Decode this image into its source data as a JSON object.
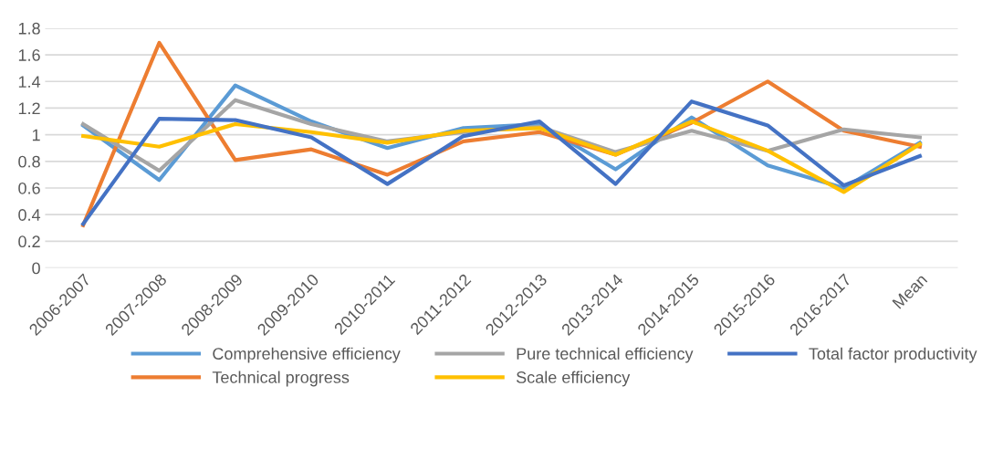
{
  "chart_data": {
    "type": "line",
    "categories": [
      "2006-2007",
      "2007-2008",
      "2008-2009",
      "2009-2010",
      "2010-2011",
      "2011-2012",
      "2012-2013",
      "2013-2014",
      "2014-2015",
      "2015-2016",
      "2016-2017",
      "Mean"
    ],
    "series": [
      {
        "name": "Comprehensive efficiency",
        "color": "#5b9bd5",
        "values": [
          1.07,
          0.66,
          1.37,
          1.1,
          0.9,
          1.05,
          1.08,
          0.74,
          1.13,
          0.77,
          0.6,
          0.94
        ]
      },
      {
        "name": "Technical progress",
        "color": "#ed7d31",
        "values": [
          0.32,
          1.69,
          0.81,
          0.89,
          0.7,
          0.95,
          1.02,
          0.85,
          1.09,
          1.4,
          1.03,
          0.91
        ]
      },
      {
        "name": "Pure technical efficiency",
        "color": "#a5a5a5",
        "values": [
          1.08,
          0.73,
          1.26,
          1.08,
          0.95,
          1.02,
          1.06,
          0.87,
          1.03,
          0.88,
          1.04,
          0.98
        ]
      },
      {
        "name": "Scale efficiency",
        "color": "#ffc000",
        "values": [
          0.99,
          0.91,
          1.08,
          1.02,
          0.94,
          1.03,
          1.05,
          0.85,
          1.1,
          0.88,
          0.57,
          0.93
        ]
      },
      {
        "name": "Total factor productivity",
        "color": "#4472c4",
        "values": [
          0.33,
          1.12,
          1.11,
          0.98,
          0.63,
          0.99,
          1.1,
          0.63,
          1.25,
          1.07,
          0.62,
          0.84
        ]
      }
    ],
    "ylim": [
      0,
      1.8
    ],
    "yticks": [
      0,
      {
        "value": 0.2,
        "label": "0.2"
      },
      {
        "value": 0.4,
        "label": "0.4"
      },
      {
        "value": 0.6,
        "label": "0.6"
      },
      {
        "value": 0.8,
        "label": "0.8"
      },
      1,
      {
        "value": 1.2,
        "label": "1.2"
      },
      {
        "value": 1.4,
        "label": "1.4"
      },
      {
        "value": 1.6,
        "label": "1.6"
      },
      {
        "value": 1.8,
        "label": "1.8"
      }
    ],
    "grid": "y",
    "legend": "bottom",
    "marker": "none",
    "line_style": "solid"
  }
}
